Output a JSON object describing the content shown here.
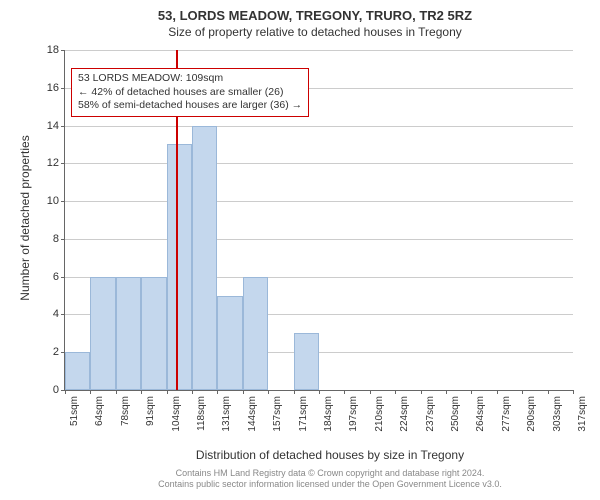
{
  "chart": {
    "type": "histogram",
    "title_main": "53, LORDS MEADOW, TREGONY, TRURO, TR2 5RZ",
    "title_sub": "Size of property relative to detached houses in Tregony",
    "ylabel": "Number of detached properties",
    "xlabel": "Distribution of detached houses by size in Tregony",
    "background_color": "#ffffff",
    "grid_color": "#cccccc",
    "bar_fill": "#c4d7ed",
    "bar_border": "#9bb8d9",
    "ref_line_color": "#cc0000",
    "ref_line_x": 109,
    "ylim": [
      0,
      18
    ],
    "ytick_step": 2,
    "x_ticks": [
      "51sqm",
      "64sqm",
      "78sqm",
      "91sqm",
      "104sqm",
      "118sqm",
      "131sqm",
      "144sqm",
      "157sqm",
      "171sqm",
      "184sqm",
      "197sqm",
      "210sqm",
      "224sqm",
      "237sqm",
      "250sqm",
      "264sqm",
      "277sqm",
      "290sqm",
      "303sqm",
      "317sqm"
    ],
    "values": [
      2,
      6,
      6,
      6,
      13,
      14,
      5,
      6,
      0,
      3,
      0,
      0,
      0,
      0,
      0,
      0,
      0,
      0,
      0,
      0
    ],
    "info_box": {
      "line1": "53 LORDS MEADOW: 109sqm",
      "line2": "← 42% of detached houses are smaller (26)",
      "line3": "58% of semi-detached houses are larger (36) →"
    },
    "footer_line1": "Contains HM Land Registry data © Crown copyright and database right 2024.",
    "footer_line2": "Contains public sector information licensed under the Open Government Licence v3.0."
  }
}
